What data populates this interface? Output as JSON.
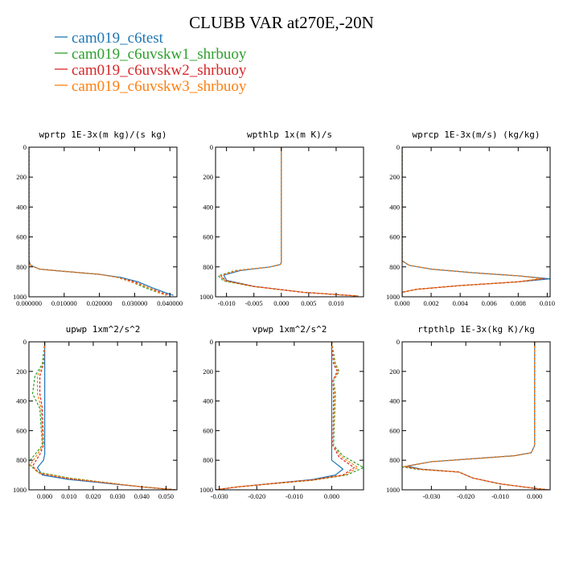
{
  "title": "CLUBB VAR at270E,-20N",
  "legend": {
    "placement": "top-left",
    "entries": [
      {
        "name": "cam019_c6test",
        "color": "#1f77b4"
      },
      {
        "name": "cam019_c6uvskw1_shrbuoy",
        "color": "#2ca02c"
      },
      {
        "name": "cam019_c6uvskw2_shrbuoy",
        "color": "#d62728"
      },
      {
        "name": "cam019_c6uvskw3_shrbuoy",
        "color": "#ff7f0e"
      }
    ]
  },
  "chart_data": [
    {
      "type": "line",
      "title": "wprtp  1E-3x(m kg)/(s kg)",
      "xlim": [
        0,
        0.042
      ],
      "ylim": [
        0,
        1000
      ],
      "y_inverted": true,
      "xticks": [
        0,
        0.01,
        0.02,
        0.03,
        0.04
      ],
      "xtick_labels": [
        "0.000000",
        "0.010000",
        "0.020000",
        "0.030000",
        "0.040000"
      ],
      "yticks": [
        0,
        200,
        400,
        600,
        800,
        1000
      ],
      "ytick_labels": [
        "0",
        "200",
        "400",
        "600",
        "800",
        "1000"
      ],
      "series": [
        {
          "name": "cam019_c6test",
          "color": "#1f77b4",
          "dash": "solid",
          "x": [
            0,
            0,
            0,
            0.0005,
            0.003,
            0.01,
            0.02,
            0.026,
            0.031,
            0.035,
            0.039,
            0.041
          ],
          "y": [
            0,
            500,
            760,
            790,
            815,
            830,
            850,
            870,
            900,
            940,
            975,
            990
          ]
        },
        {
          "name": "cam019_c6uvskw1_shrbuoy",
          "color": "#2ca02c",
          "dash": "dashed",
          "x": [
            0,
            0,
            0,
            0.0005,
            0.003,
            0.01,
            0.02,
            0.025,
            0.029,
            0.033,
            0.037,
            0.039
          ],
          "y": [
            0,
            500,
            760,
            790,
            815,
            830,
            850,
            870,
            900,
            940,
            975,
            990
          ]
        },
        {
          "name": "cam019_c6uvskw2_shrbuoy",
          "color": "#d62728",
          "dash": "dashed",
          "x": [
            0,
            0,
            0,
            0.0005,
            0.003,
            0.01,
            0.02,
            0.025,
            0.03,
            0.034,
            0.038,
            0.04
          ],
          "y": [
            0,
            500,
            760,
            790,
            815,
            830,
            850,
            870,
            900,
            940,
            975,
            990
          ]
        },
        {
          "name": "cam019_c6uvskw3_shrbuoy",
          "color": "#ff7f0e",
          "dash": "dashed",
          "x": [
            0,
            0,
            0,
            0.0005,
            0.003,
            0.01,
            0.02,
            0.025,
            0.029,
            0.034,
            0.037,
            0.039
          ],
          "y": [
            0,
            500,
            760,
            790,
            815,
            830,
            850,
            870,
            900,
            940,
            975,
            990
          ]
        }
      ]
    },
    {
      "type": "line",
      "title": "wpthlp  1x(m K)/s",
      "xlim": [
        -0.012,
        0.015
      ],
      "ylim": [
        0,
        1000
      ],
      "y_inverted": true,
      "xticks": [
        -0.01,
        -0.005,
        0,
        0.005,
        0.01
      ],
      "xtick_labels": [
        "-0.010",
        "-0.005",
        "0.000",
        "0.005",
        "0.010"
      ],
      "yticks": [
        0,
        200,
        400,
        600,
        800,
        1000
      ],
      "ytick_labels": [
        "0",
        "200",
        "400",
        "600",
        "800",
        "1000"
      ],
      "series": [
        {
          "name": "cam019_c6test",
          "color": "#1f77b4",
          "dash": "solid",
          "x": [
            0,
            0,
            0,
            -0.0002,
            -0.002,
            -0.0075,
            -0.0105,
            -0.01,
            -0.005,
            0.004,
            0.014
          ],
          "y": [
            0,
            500,
            770,
            785,
            800,
            825,
            855,
            890,
            930,
            970,
            995
          ]
        },
        {
          "name": "cam019_c6uvskw1_shrbuoy",
          "color": "#2ca02c",
          "dash": "dashed",
          "x": [
            0,
            0,
            0,
            -0.0002,
            -0.002,
            -0.0085,
            -0.0115,
            -0.0105,
            -0.005,
            0.004,
            0.014
          ],
          "y": [
            0,
            500,
            770,
            785,
            800,
            825,
            860,
            895,
            932,
            970,
            995
          ]
        },
        {
          "name": "cam019_c6uvskw2_shrbuoy",
          "color": "#d62728",
          "dash": "dashed",
          "x": [
            0,
            0,
            0,
            -0.0002,
            -0.002,
            -0.008,
            -0.011,
            -0.0102,
            -0.005,
            0.004,
            0.014
          ],
          "y": [
            0,
            500,
            770,
            785,
            800,
            825,
            858,
            892,
            931,
            970,
            995
          ]
        },
        {
          "name": "cam019_c6uvskw3_shrbuoy",
          "color": "#ff7f0e",
          "dash": "dashed",
          "x": [
            0,
            0,
            0,
            -0.0002,
            -0.002,
            -0.0082,
            -0.0112,
            -0.0103,
            -0.005,
            0.004,
            0.014
          ],
          "y": [
            0,
            500,
            770,
            785,
            800,
            825,
            859,
            893,
            931,
            970,
            995
          ]
        }
      ]
    },
    {
      "type": "line",
      "title": "wprcp  1E-3x(m/s) (kg/kg)",
      "xlim": [
        0,
        0.0102
      ],
      "ylim": [
        0,
        1000
      ],
      "y_inverted": true,
      "xticks": [
        0,
        0.002,
        0.004,
        0.006,
        0.008,
        0.01
      ],
      "xtick_labels": [
        "0.000",
        "0.002",
        "0.004",
        "0.006",
        "0.008",
        "0.010"
      ],
      "yticks": [
        0,
        200,
        400,
        600,
        800,
        1000
      ],
      "ytick_labels": [
        "0",
        "200",
        "400",
        "600",
        "800",
        "1000"
      ],
      "series": [
        {
          "name": "cam019_c6test",
          "color": "#1f77b4",
          "dash": "solid",
          "x": [
            0,
            0,
            0,
            0.0005,
            0.002,
            0.005,
            0.008,
            0.0102,
            0.008,
            0.004,
            0.001,
            0,
            0
          ],
          "y": [
            0,
            500,
            760,
            790,
            815,
            840,
            860,
            880,
            900,
            925,
            950,
            970,
            1000
          ]
        },
        {
          "name": "cam019_c6uvskw1_shrbuoy",
          "color": "#2ca02c",
          "dash": "dashed",
          "x": [
            0,
            0,
            0,
            0.0005,
            0.002,
            0.005,
            0.008,
            0.0097,
            0.008,
            0.004,
            0.001,
            0,
            0
          ],
          "y": [
            0,
            500,
            760,
            790,
            815,
            840,
            860,
            878,
            900,
            925,
            950,
            970,
            1000
          ]
        },
        {
          "name": "cam019_c6uvskw2_shrbuoy",
          "color": "#d62728",
          "dash": "dashed",
          "x": [
            0,
            0,
            0,
            0.0005,
            0.002,
            0.005,
            0.008,
            0.0098,
            0.008,
            0.004,
            0.001,
            0,
            0
          ],
          "y": [
            0,
            500,
            760,
            790,
            815,
            840,
            860,
            879,
            900,
            925,
            950,
            970,
            1000
          ]
        },
        {
          "name": "cam019_c6uvskw3_shrbuoy",
          "color": "#ff7f0e",
          "dash": "dashed",
          "x": [
            0,
            0,
            0,
            0.0005,
            0.002,
            0.005,
            0.008,
            0.0096,
            0.008,
            0.004,
            0.001,
            0,
            0
          ],
          "y": [
            0,
            500,
            760,
            790,
            815,
            840,
            860,
            878,
            900,
            925,
            950,
            970,
            1000
          ]
        }
      ]
    },
    {
      "type": "line",
      "title": "upwp  1xm^2/s^2",
      "xlim": [
        -0.0065,
        0.0545
      ],
      "ylim": [
        0,
        1000
      ],
      "y_inverted": true,
      "xticks": [
        0,
        0.01,
        0.02,
        0.03,
        0.04,
        0.05
      ],
      "xtick_labels": [
        "0.000",
        "0.010",
        "0.020",
        "0.030",
        "0.040",
        "0.050"
      ],
      "yticks": [
        0,
        200,
        400,
        600,
        800,
        1000
      ],
      "ytick_labels": [
        "0",
        "200",
        "400",
        "600",
        "800",
        "1000"
      ],
      "series": [
        {
          "name": "cam019_c6test",
          "color": "#1f77b4",
          "dash": "solid",
          "x": [
            0,
            0,
            0,
            0,
            0,
            0,
            -0.0005,
            -0.003,
            -0.001,
            0.01,
            0.025,
            0.04,
            0.054
          ],
          "y": [
            0,
            150,
            300,
            500,
            650,
            760,
            800,
            850,
            900,
            930,
            955,
            980,
            1000
          ]
        },
        {
          "name": "cam019_c6uvskw1_shrbuoy",
          "color": "#2ca02c",
          "dash": "dashed",
          "x": [
            0,
            -0.001,
            -0.004,
            -0.005,
            -0.002,
            -0.001,
            -0.004,
            -0.007,
            -0.003,
            0.01,
            0.025,
            0.04,
            0.054
          ],
          "y": [
            0,
            150,
            230,
            350,
            450,
            700,
            760,
            820,
            880,
            920,
            950,
            980,
            1000
          ]
        },
        {
          "name": "cam019_c6uvskw2_shrbuoy",
          "color": "#d62728",
          "dash": "dashed",
          "x": [
            0,
            -0.0005,
            -0.002,
            -0.002,
            -0.001,
            -0.0005,
            -0.002,
            -0.005,
            -0.002,
            0.01,
            0.025,
            0.04,
            0.054
          ],
          "y": [
            0,
            150,
            230,
            350,
            450,
            700,
            760,
            840,
            890,
            925,
            952,
            980,
            1000
          ]
        },
        {
          "name": "cam019_c6uvskw3_shrbuoy",
          "color": "#ff7f0e",
          "dash": "dashed",
          "x": [
            0,
            -0.0007,
            -0.003,
            -0.003,
            -0.0015,
            -0.0007,
            -0.003,
            -0.006,
            -0.0025,
            0.01,
            0.025,
            0.04,
            0.054
          ],
          "y": [
            0,
            150,
            230,
            350,
            450,
            700,
            760,
            830,
            885,
            922,
            951,
            980,
            1000
          ]
        }
      ]
    },
    {
      "type": "line",
      "title": "vpwp  1xm^2/s^2",
      "xlim": [
        -0.031,
        0.0085
      ],
      "ylim": [
        0,
        1000
      ],
      "y_inverted": true,
      "xticks": [
        -0.03,
        -0.02,
        -0.01,
        0
      ],
      "xtick_labels": [
        "-0.030",
        "-0.020",
        "-0.010",
        "0.000"
      ],
      "yticks": [
        0,
        200,
        400,
        600,
        800,
        1000
      ],
      "ytick_labels": [
        "0",
        "200",
        "400",
        "600",
        "800",
        "1000"
      ],
      "series": [
        {
          "name": "cam019_c6test",
          "color": "#1f77b4",
          "dash": "solid",
          "x": [
            0,
            0,
            0,
            0,
            0,
            0,
            0,
            0.003,
            0.001,
            -0.005,
            -0.015,
            -0.025,
            -0.031
          ],
          "y": [
            0,
            150,
            300,
            500,
            650,
            750,
            800,
            860,
            900,
            930,
            955,
            980,
            1000
          ]
        },
        {
          "name": "cam019_c6uvskw1_shrbuoy",
          "color": "#2ca02c",
          "dash": "dashed",
          "x": [
            0,
            0.001,
            0.002,
            0.0005,
            0.001,
            0.0005,
            0.003,
            0.0085,
            0.004,
            -0.005,
            -0.015,
            -0.025,
            -0.031
          ],
          "y": [
            0,
            150,
            200,
            260,
            350,
            700,
            770,
            850,
            900,
            935,
            957,
            980,
            1000
          ]
        },
        {
          "name": "cam019_c6uvskw2_shrbuoy",
          "color": "#d62728",
          "dash": "dashed",
          "x": [
            0,
            0.0005,
            0.0015,
            0.0003,
            0.0005,
            0.0003,
            0.002,
            0.006,
            0.003,
            -0.005,
            -0.015,
            -0.025,
            -0.031
          ],
          "y": [
            0,
            150,
            200,
            260,
            350,
            700,
            780,
            850,
            900,
            933,
            956,
            980,
            1000
          ]
        },
        {
          "name": "cam019_c6uvskw3_shrbuoy",
          "color": "#ff7f0e",
          "dash": "dashed",
          "x": [
            0,
            0.0008,
            0.0018,
            0.0004,
            0.0008,
            0.0004,
            0.0025,
            0.007,
            0.0035,
            -0.005,
            -0.015,
            -0.025,
            -0.031
          ],
          "y": [
            0,
            150,
            200,
            260,
            350,
            700,
            775,
            850,
            900,
            934,
            956,
            980,
            1000
          ]
        }
      ]
    },
    {
      "type": "line",
      "title": "rtpthlp  1E-3x(kg K)/kg",
      "xlim": [
        -0.0385,
        0.0045
      ],
      "ylim": [
        0,
        1000
      ],
      "y_inverted": true,
      "xticks": [
        -0.03,
        -0.02,
        -0.01,
        0
      ],
      "xtick_labels": [
        "-0.030",
        "-0.020",
        "-0.010",
        "0.000"
      ],
      "yticks": [
        0,
        200,
        400,
        600,
        800,
        1000
      ],
      "ytick_labels": [
        "0",
        "200",
        "400",
        "600",
        "800",
        "1000"
      ],
      "series": [
        {
          "name": "cam019_c6test",
          "color": "#1f77b4",
          "dash": "solid",
          "x": [
            0,
            0,
            0,
            -0.001,
            -0.006,
            -0.018,
            -0.03,
            -0.037,
            -0.033,
            -0.022,
            -0.018,
            -0.01,
            0,
            0.004
          ],
          "y": [
            0,
            400,
            700,
            750,
            770,
            790,
            810,
            840,
            860,
            880,
            920,
            960,
            990,
            1000
          ]
        },
        {
          "name": "cam019_c6uvskw1_shrbuoy",
          "color": "#2ca02c",
          "dash": "dashed",
          "x": [
            0,
            0,
            0,
            -0.001,
            -0.006,
            -0.018,
            -0.03,
            -0.0385,
            -0.034,
            -0.022,
            -0.018,
            -0.01,
            0,
            0.004
          ],
          "y": [
            0,
            400,
            700,
            750,
            770,
            790,
            810,
            845,
            862,
            880,
            920,
            960,
            990,
            1000
          ]
        },
        {
          "name": "cam019_c6uvskw2_shrbuoy",
          "color": "#d62728",
          "dash": "dashed",
          "x": [
            0,
            0,
            0,
            -0.001,
            -0.006,
            -0.018,
            -0.03,
            -0.038,
            -0.0335,
            -0.022,
            -0.018,
            -0.01,
            0,
            0.004
          ],
          "y": [
            0,
            400,
            700,
            750,
            770,
            790,
            810,
            843,
            861,
            880,
            920,
            960,
            990,
            1000
          ]
        },
        {
          "name": "cam019_c6uvskw3_shrbuoy",
          "color": "#ff7f0e",
          "dash": "dashed",
          "x": [
            0,
            0,
            0,
            -0.001,
            -0.006,
            -0.018,
            -0.03,
            -0.0378,
            -0.0333,
            -0.022,
            -0.018,
            -0.01,
            0,
            0.004
          ],
          "y": [
            0,
            400,
            700,
            750,
            770,
            790,
            810,
            842,
            861,
            880,
            920,
            960,
            990,
            1000
          ]
        }
      ]
    }
  ]
}
